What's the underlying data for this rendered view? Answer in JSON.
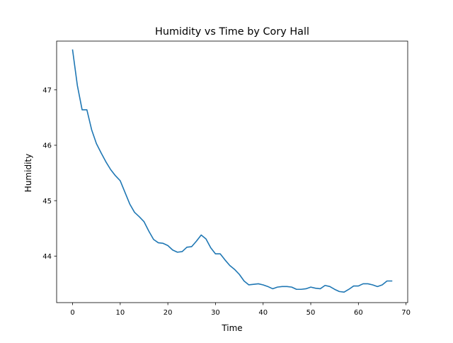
{
  "chart_data": {
    "type": "line",
    "title": "Humidity vs Time by Cory Hall",
    "xlabel": "Time",
    "ylabel": "Humidity",
    "xlim": [
      -3.35,
      70.35
    ],
    "ylim": [
      43.16,
      47.88
    ],
    "x_ticks": [
      0,
      10,
      20,
      30,
      40,
      50,
      60,
      70
    ],
    "y_ticks": [
      44,
      45,
      46,
      47
    ],
    "grid": false,
    "legend": "none",
    "line_color": "#1f77b4",
    "series": [
      {
        "x": [
          0,
          1,
          2,
          3,
          4,
          5,
          6,
          7,
          8,
          9,
          10,
          11,
          12,
          13,
          14,
          15,
          16,
          17,
          18,
          19,
          20,
          21,
          22,
          23,
          24,
          25,
          26,
          27,
          28,
          29,
          30,
          31,
          32,
          33,
          34,
          35,
          36,
          37,
          38,
          39,
          40,
          41,
          42,
          43,
          44,
          45,
          46,
          47,
          48,
          49,
          50,
          51,
          52,
          53,
          54,
          55,
          56,
          57,
          58,
          59,
          60,
          61,
          62,
          63,
          64,
          65,
          66,
          67
        ],
        "values": [
          47.72,
          47.08,
          46.64,
          46.64,
          46.28,
          46.03,
          45.86,
          45.7,
          45.56,
          45.45,
          45.36,
          45.15,
          44.94,
          44.79,
          44.71,
          44.62,
          44.45,
          44.3,
          44.24,
          44.23,
          44.19,
          44.11,
          44.07,
          44.08,
          44.16,
          44.17,
          44.27,
          44.38,
          44.31,
          44.15,
          44.04,
          44.04,
          43.93,
          43.83,
          43.76,
          43.67,
          43.55,
          43.48,
          43.49,
          43.5,
          43.48,
          43.45,
          43.41,
          43.44,
          43.45,
          43.45,
          43.44,
          43.4,
          43.4,
          43.41,
          43.44,
          43.42,
          43.41,
          43.47,
          43.45,
          43.4,
          43.36,
          43.35,
          43.4,
          43.46,
          43.46,
          43.5,
          43.5,
          43.48,
          43.45,
          43.48,
          43.55,
          43.55
        ]
      }
    ]
  }
}
